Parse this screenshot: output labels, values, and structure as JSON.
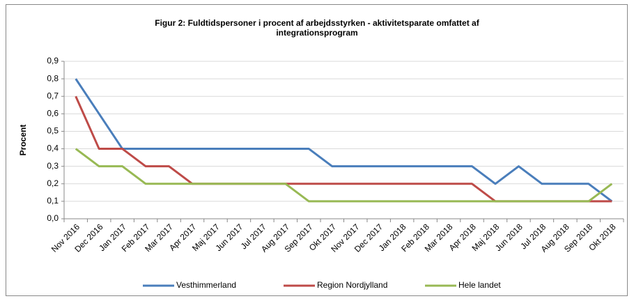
{
  "chart_data": {
    "type": "line",
    "title": "Figur 2: Fuldtidspersoner i procent af arbejdsstyrken - aktivitetsparate omfattet af integrationsprogram",
    "y_label": "Procent",
    "categories": [
      "Nov 2016",
      "Dec 2016",
      "Jan 2017",
      "Feb 2017",
      "Mar 2017",
      "Apr 2017",
      "Maj 2017",
      "Jun 2017",
      "Jul 2017",
      "Aug 2017",
      "Sep 2017",
      "Okt 2017",
      "Nov 2017",
      "Dec 2017",
      "Jan 2018",
      "Feb 2018",
      "Mar 2018",
      "Apr 2018",
      "Maj 2018",
      "Jun 2018",
      "Jul 2018",
      "Aug 2018",
      "Sep 2018",
      "Okt 2018"
    ],
    "series": [
      {
        "name": "Vesthimmerland",
        "color": "#4a7ebb",
        "values": [
          0.8,
          0.6,
          0.4,
          0.4,
          0.4,
          0.4,
          0.4,
          0.4,
          0.4,
          0.4,
          0.4,
          0.3,
          0.3,
          0.3,
          0.3,
          0.3,
          0.3,
          0.3,
          0.2,
          0.3,
          0.2,
          0.2,
          0.2,
          0.1
        ]
      },
      {
        "name": "Region Nordjylland",
        "color": "#be4b48",
        "values": [
          0.7,
          0.4,
          0.4,
          0.3,
          0.3,
          0.2,
          0.2,
          0.2,
          0.2,
          0.2,
          0.2,
          0.2,
          0.2,
          0.2,
          0.2,
          0.2,
          0.2,
          0.2,
          0.1,
          0.1,
          0.1,
          0.1,
          0.1,
          0.1
        ]
      },
      {
        "name": "Hele landet",
        "color": "#98b954",
        "values": [
          0.4,
          0.3,
          0.3,
          0.2,
          0.2,
          0.2,
          0.2,
          0.2,
          0.2,
          0.2,
          0.1,
          0.1,
          0.1,
          0.1,
          0.1,
          0.1,
          0.1,
          0.1,
          0.1,
          0.1,
          0.1,
          0.1,
          0.1,
          0.2
        ]
      }
    ],
    "ylim": [
      0,
      0.9
    ],
    "yticks": [
      {
        "value": 0,
        "label": "0,0"
      },
      {
        "value": 0.1,
        "label": "0,1"
      },
      {
        "value": 0.2,
        "label": "0,2"
      },
      {
        "value": 0.3,
        "label": "0,3"
      },
      {
        "value": 0.4,
        "label": "0,4"
      },
      {
        "value": 0.5,
        "label": "0,5"
      },
      {
        "value": 0.6,
        "label": "0,6"
      },
      {
        "value": 0.7,
        "label": "0,7"
      },
      {
        "value": 0.8,
        "label": "0,8"
      },
      {
        "value": 0.9,
        "label": "0,9"
      }
    ],
    "grid": true,
    "legend": "bottom"
  }
}
